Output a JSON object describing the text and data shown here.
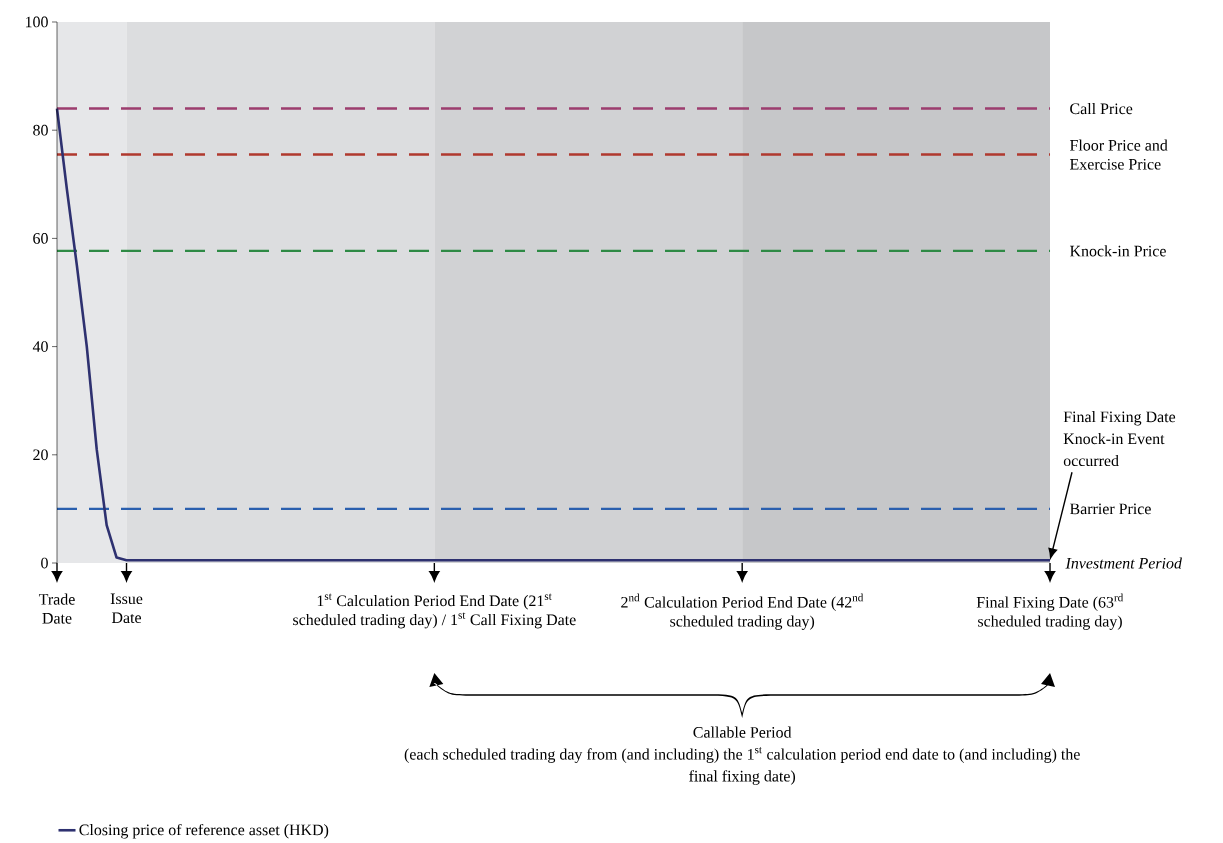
{
  "chart_data": {
    "type": "line",
    "categories": [
      "Trade Date",
      null,
      null,
      null,
      null,
      null,
      null,
      "Issue Date",
      null,
      null,
      null,
      null,
      null,
      null,
      null,
      null,
      null,
      null,
      null,
      null,
      null,
      null,
      null,
      null,
      null,
      null,
      null,
      null,
      null,
      null,
      null,
      null,
      null,
      null,
      null,
      null,
      null,
      null,
      "1$^{st}$ Calculation Period End Date (21$^{st}$ scheduled trading day) / 1$^{st}$ Call Fixing Date",
      null,
      null,
      null,
      null,
      null,
      null,
      null,
      null,
      null,
      null,
      null,
      null,
      null,
      null,
      null,
      null,
      null,
      null,
      null,
      null,
      null,
      null,
      null,
      null,
      null,
      null,
      null,
      null,
      null,
      null,
      "2$^{nd}$ Calculation Period End Date (42$^{nd}$ scheduled trading day)",
      null,
      null,
      null,
      null,
      null,
      null,
      null,
      null,
      null,
      null,
      null,
      null,
      null,
      null,
      null,
      null,
      null,
      null,
      null,
      null,
      null,
      null,
      null,
      null,
      null,
      null,
      null,
      null,
      null,
      null,
      "Final Fixing Date (63$^{rd}$ scheduled trading day)"
    ],
    "series": [
      {
        "name": "Closing price of reference asset (HKD)",
        "color": "#2e3170",
        "values": [
          84,
          69,
          55,
          40,
          21,
          7,
          1,
          0.5,
          0.5,
          0.5,
          0.5,
          0.5,
          0.5,
          0.5,
          0.5,
          0.5,
          0.5,
          0.5,
          0.5,
          0.5,
          0.5,
          0.5,
          0.5,
          0.5,
          0.5,
          0.5,
          0.5,
          0.5,
          0.5,
          0.5,
          0.5,
          0.5,
          0.5,
          0.5,
          0.5,
          0.5,
          0.5,
          0.5,
          0.5,
          0.5,
          0.5,
          0.5,
          0.5,
          0.5,
          0.5,
          0.5,
          0.5,
          0.5,
          0.5,
          0.5,
          0.5,
          0.5,
          0.5,
          0.5,
          0.5,
          0.5,
          0.5,
          0.5,
          0.5,
          0.5,
          0.5,
          0.5,
          0.5,
          0.5,
          0.5,
          0.5,
          0.5,
          0.5,
          0.5,
          0.5,
          0.5,
          0.5,
          0.5,
          0.5,
          0.5,
          0.5,
          0.5,
          0.5,
          0.5,
          0.5,
          0.5,
          0.5,
          0.5,
          0.5,
          0.5,
          0.5,
          0.5,
          0.5,
          0.5,
          0.5,
          0.5,
          0.5,
          0.5,
          0.5,
          0.5,
          0.5,
          0.5,
          0.5,
          0.5,
          0.5,
          0.5
        ]
      }
    ],
    "ylim": [
      0,
      100
    ],
    "yticks": [
      0,
      20,
      40,
      60,
      80,
      100
    ],
    "ref_lines": [
      {
        "axis": "y",
        "value": 84,
        "label": "Call Price",
        "color": "#9c3d6e",
        "line_style": "dashed"
      },
      {
        "axis": "y",
        "value": 75.5,
        "label": "Floor Price and Exercise Price",
        "color": "#b0392e",
        "line_style": "dashed"
      },
      {
        "axis": "y",
        "value": 57.7,
        "label": "Knock-in Price",
        "color": "#2e8a45",
        "line_style": "dashed"
      },
      {
        "axis": "y",
        "value": 10,
        "label": "Barrier Price",
        "color": "#2a5fae",
        "line_style": "dashed"
      }
    ],
    "bands": [
      {
        "axis": "x",
        "from": "Trade Date",
        "to": "Issue Date",
        "color": "#e6e7e9"
      },
      {
        "axis": "x",
        "from": "Issue Date",
        "to": "1$^{st}$ Calculation Period End Date (21$^{st}$ scheduled trading day) / 1$^{st}$ Call Fixing Date",
        "color": "#dcdddf"
      },
      {
        "axis": "x",
        "from": "1$^{st}$ Calculation Period End Date (21$^{st}$ scheduled trading day) / 1$^{st}$ Call Fixing Date",
        "to": "2$^{nd}$ Calculation Period End Date (42$^{nd}$ scheduled trading day)",
        "color": "#d1d2d4"
      },
      {
        "axis": "x",
        "from": "2$^{nd}$ Calculation Period End Date (42$^{nd}$ scheduled trading day)",
        "to": "Final Fixing Date (63$^{rd}$ scheduled trading day)",
        "color": "#c6c7c9"
      }
    ],
    "annotations": [
      "Final Fixing Date Knock-in Event occurred",
      "Investment Period",
      "Callable Period",
      "(each scheduled trading day from (and including) the 1$^{st}$ calculation period end date to (and including) the final fixing date)"
    ],
    "legend": "bottom left"
  }
}
